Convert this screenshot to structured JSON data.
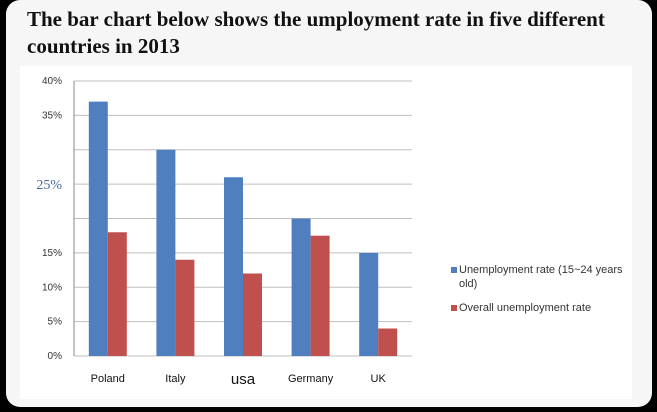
{
  "title": "The bar chart below shows the umployment rate in five different countries in 2013",
  "chart_data": {
    "type": "bar",
    "title": "The bar chart below shows the umployment rate in five different countries in 2013",
    "categories": [
      "Poland",
      "Italy",
      "usa",
      "Germany",
      "UK"
    ],
    "series": [
      {
        "name": "Unemployment rate (15~24 years old)",
        "color": "#4f7fbf",
        "values": [
          37,
          30,
          26,
          20,
          15
        ]
      },
      {
        "name": "Overall unemployment rate",
        "color": "#c0504d",
        "values": [
          18,
          14,
          12,
          17.5,
          4
        ]
      }
    ],
    "yticks": [
      "0%",
      "5%",
      "10%",
      "15%",
      "",
      "25%",
      "",
      "35%",
      "40%"
    ],
    "ylim": [
      0,
      40
    ],
    "xlabel": "",
    "ylabel": "",
    "grid": true,
    "legend_position": "right"
  }
}
